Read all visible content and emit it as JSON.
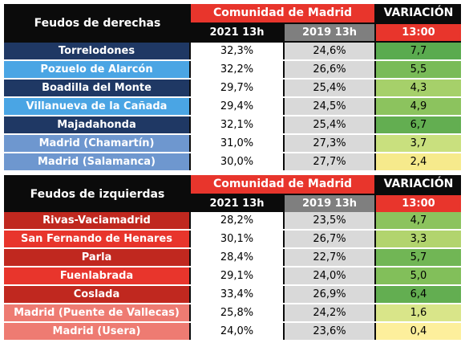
{
  "right": {
    "title": "Feudos de derechas",
    "header_group": "Comunidad de Madrid",
    "header_variation": "VARIACIÓN",
    "col_2021": "2021 13h",
    "col_2019": "2019 13h",
    "col_time": "13:00",
    "rows": [
      {
        "name": "Torrelodones",
        "v2021": "32,3%",
        "v2019": "24,6%",
        "var": "7,7",
        "name_color": "#1f3864",
        "var_color": "#5aab4f"
      },
      {
        "name": "Pozuelo de Alarcón",
        "v2021": "32,2%",
        "v2019": "26,6%",
        "var": "5,5",
        "name_color": "#4aa5e4",
        "var_color": "#79bb58"
      },
      {
        "name": "Boadilla del Monte",
        "v2021": "29,7%",
        "v2019": "25,4%",
        "var": "4,3",
        "name_color": "#1f3864",
        "var_color": "#a6d06a"
      },
      {
        "name": "Villanueva de la Cañada",
        "v2021": "29,4%",
        "v2019": "24,5%",
        "var": "4,9",
        "name_color": "#4aa5e4",
        "var_color": "#8cc35e"
      },
      {
        "name": "Majadahonda",
        "v2021": "32,1%",
        "v2019": "25,4%",
        "var": "6,7",
        "name_color": "#1f3864",
        "var_color": "#63ae51"
      },
      {
        "name": "Madrid (Chamartín)",
        "v2021": "31,0%",
        "v2019": "27,3%",
        "var": "3,7",
        "name_color": "#6e97cf",
        "var_color": "#c9e07e"
      },
      {
        "name": "Madrid (Salamanca)",
        "v2021": "30,0%",
        "v2019": "27,7%",
        "var": "2,4",
        "name_color": "#6e97cf",
        "var_color": "#f6ea8c"
      }
    ]
  },
  "left": {
    "title": "Feudos de izquierdas",
    "header_group": "Comunidad de Madrid",
    "header_variation": "VARIACIÓN",
    "col_2021": "2021 13h",
    "col_2019": "2019 13h",
    "col_time": "13:00",
    "rows": [
      {
        "name": "Rivas-Vaciamadrid",
        "v2021": "28,2%",
        "v2019": "23,5%",
        "var": "4,7",
        "name_color": "#c0281f",
        "var_color": "#8cc35e"
      },
      {
        "name": "San Fernando de Henares",
        "v2021": "30,1%",
        "v2019": "26,7%",
        "var": "3,3",
        "name_color": "#e8352c",
        "var_color": "#b2d46e"
      },
      {
        "name": "Parla",
        "v2021": "28,4%",
        "v2019": "22,7%",
        "var": "5,7",
        "name_color": "#c0281f",
        "var_color": "#71b655"
      },
      {
        "name": "Fuenlabrada",
        "v2021": "29,1%",
        "v2019": "24,0%",
        "var": "5,0",
        "name_color": "#e8352c",
        "var_color": "#82bf5a"
      },
      {
        "name": "Coslada",
        "v2021": "33,4%",
        "v2019": "26,9%",
        "var": "6,4",
        "name_color": "#c0281f",
        "var_color": "#63ae51"
      },
      {
        "name": "Madrid (Puente de Vallecas)",
        "v2021": "25,8%",
        "v2019": "24,2%",
        "var": "1,6",
        "name_color": "#ee7b72",
        "var_color": "#d9e589"
      },
      {
        "name": "Madrid (Usera)",
        "v2021": "24,0%",
        "v2019": "23,6%",
        "var": "0,4",
        "name_color": "#ee7b72",
        "var_color": "#fdef9c"
      }
    ]
  }
}
